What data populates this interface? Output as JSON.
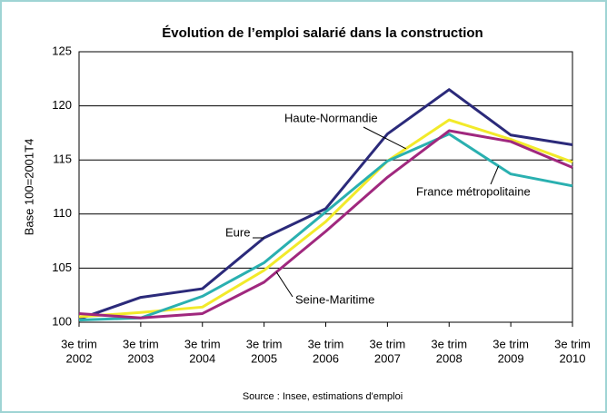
{
  "chart_data": {
    "type": "line",
    "title": "Évolution de l’emploi salarié dans la construction",
    "y_label": "Base 100=2001T4",
    "source": "Source : Insee, estimations d'emploi",
    "categories": [
      [
        "3e trim",
        "2002"
      ],
      [
        "3e trim",
        "2003"
      ],
      [
        "3e trim",
        "2004"
      ],
      [
        "3e trim",
        "2005"
      ],
      [
        "3e trim",
        "2006"
      ],
      [
        "3e trim",
        "2007"
      ],
      [
        "3e trim",
        "2008"
      ],
      [
        "3e trim",
        "2009"
      ],
      [
        "3e trim",
        "2010"
      ]
    ],
    "series": [
      {
        "name": "Eure",
        "color": "#2b2a7a",
        "values": [
          100.3,
          102.3,
          103.1,
          107.8,
          110.5,
          117.4,
          121.5,
          117.3,
          116.4
        ]
      },
      {
        "name": "Haute-Normandie",
        "color": "#f2ea2a",
        "values": [
          100.5,
          100.9,
          101.4,
          104.8,
          109.3,
          114.9,
          118.7,
          116.9,
          114.8
        ]
      },
      {
        "name": "France métropolitaine",
        "color": "#2ab0b0",
        "values": [
          100.2,
          100.4,
          102.4,
          105.5,
          110.2,
          114.9,
          117.4,
          113.7,
          112.6
        ]
      },
      {
        "name": "Seine-Maritime",
        "color": "#a0287e",
        "values": [
          100.8,
          100.4,
          100.8,
          103.7,
          108.4,
          113.4,
          117.7,
          116.7,
          114.3
        ]
      }
    ],
    "ylim": [
      100,
      125
    ],
    "yticks": [
      100,
      105,
      110,
      115,
      120,
      125
    ],
    "grid": true
  }
}
